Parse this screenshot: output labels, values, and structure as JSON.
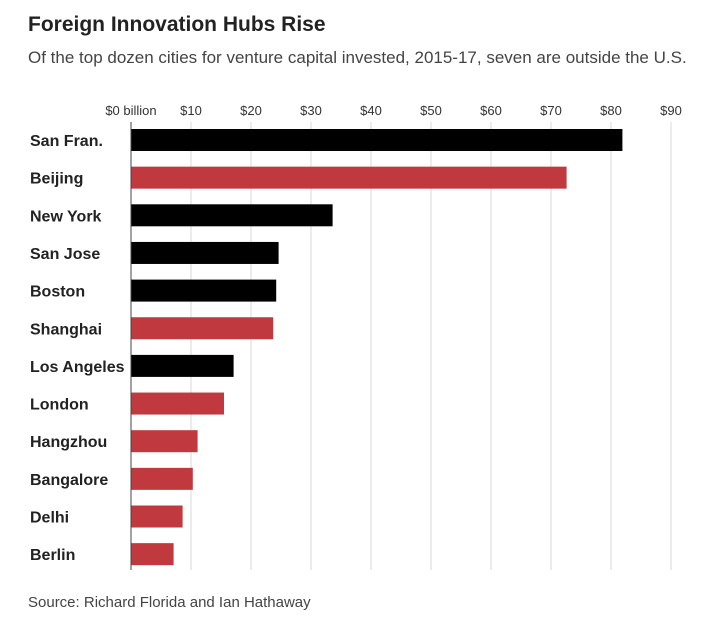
{
  "chart_data": {
    "type": "bar",
    "orientation": "horizontal",
    "title": "Foreign Innovation Hubs Rise",
    "subtitle": "Of the top dozen cities for venture capital invested, 2015-17, seven are outside the U.S.",
    "source": "Source: Richard Florida and Ian Hathaway",
    "xlim": [
      0,
      90
    ],
    "xticks": [
      0,
      10,
      20,
      30,
      40,
      50,
      60,
      70,
      80,
      90
    ],
    "xtick_labels": [
      "$0 billion",
      "$10",
      "$20",
      "$30",
      "$40",
      "$50",
      "$60",
      "$70",
      "$80",
      "$90"
    ],
    "grid": true,
    "categories": [
      "San Fran.",
      "Beijing",
      "New York",
      "San Jose",
      "Boston",
      "Shanghai",
      "Los Angeles",
      "London",
      "Hangzhou",
      "Bangalore",
      "Delhi",
      "Berlin"
    ],
    "values": [
      81.9,
      72.6,
      33.6,
      24.6,
      24.2,
      23.7,
      17.1,
      15.5,
      11.1,
      10.3,
      8.6,
      7.1
    ],
    "bar_colors": [
      "#000000",
      "#c0393e",
      "#000000",
      "#000000",
      "#000000",
      "#c0393e",
      "#000000",
      "#c0393e",
      "#c0393e",
      "#c0393e",
      "#c0393e",
      "#c0393e"
    ]
  },
  "colors": {
    "us": "#000000",
    "foreign": "#c0393e",
    "gridline": "#d9d9d9",
    "axis": "#444444"
  }
}
